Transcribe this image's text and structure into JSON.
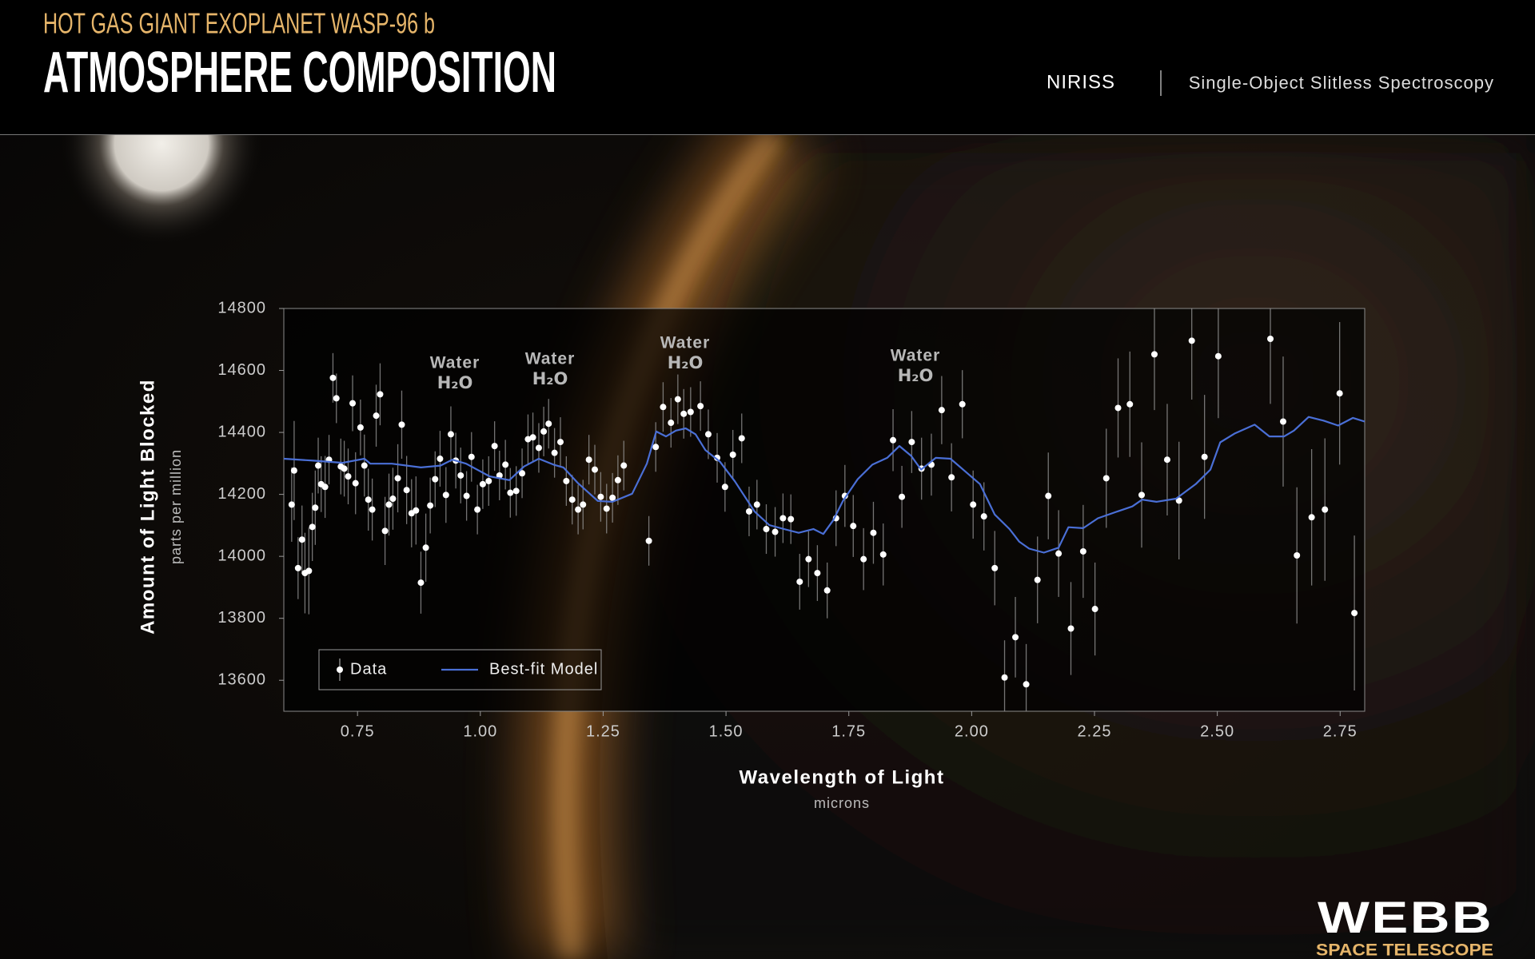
{
  "header": {
    "subtitle": "HOT GAS GIANT EXOPLANET WASP-96 b",
    "title": "ATMOSPHERE COMPOSITION",
    "instrument": "NIRISS",
    "mode": "Single-Object Slitless Spectroscopy"
  },
  "logo": {
    "name": "WEBB",
    "tagline": "SPACE TELESCOPE"
  },
  "chart_data": {
    "type": "scatter",
    "ylabel": "Amount of Light Blocked",
    "ylabel_units": "parts per million",
    "xlabel": "Wavelength of Light",
    "xlabel_units": "microns",
    "xlim": [
      0.6,
      2.8
    ],
    "ylim": [
      13500,
      14800
    ],
    "xticks": [
      0.75,
      {
        "value": 1,
        "label": "1.00"
      },
      1.25,
      {
        "value": 1.5,
        "label": "1.50"
      },
      1.75,
      {
        "value": 2,
        "label": "2.00"
      },
      2.25,
      {
        "value": 2.5,
        "label": "2.50"
      },
      2.75
    ],
    "yticks": [
      13600,
      13800,
      14000,
      14200,
      14400,
      14600,
      14800
    ],
    "legend": "lower left",
    "annotations": [
      {
        "text": "Water",
        "formula": "H₂O"
      },
      {
        "text": "Water",
        "formula": "H₂O"
      },
      {
        "text": "Water",
        "formula": "H₂O"
      },
      {
        "text": "Water",
        "formula": "H₂O"
      }
    ],
    "series": [
      {
        "name": "Data",
        "type": "scatter",
        "color": "#ffffff",
        "error_color": "#9a9a9a",
        "x": [
          0.616,
          0.621,
          0.629,
          0.637,
          0.643,
          0.651,
          0.658,
          0.664,
          0.67,
          0.676,
          0.684,
          0.692,
          0.7,
          0.707,
          0.716,
          0.723,
          0.731,
          0.74,
          0.746,
          0.756,
          0.764,
          0.772,
          0.78,
          0.788,
          0.796,
          0.806,
          0.814,
          0.822,
          0.832,
          0.84,
          0.85,
          0.86,
          0.869,
          0.879,
          0.889,
          0.898,
          0.908,
          0.918,
          0.93,
          0.94,
          0.95,
          0.96,
          0.972,
          0.982,
          0.994,
          1.005,
          1.017,
          1.029,
          1.039,
          1.051,
          1.061,
          1.073,
          1.085,
          1.097,
          1.107,
          1.119,
          1.129,
          1.139,
          1.151,
          1.163,
          1.175,
          1.187,
          1.199,
          1.209,
          1.221,
          1.233,
          1.245,
          1.257,
          1.269,
          1.28,
          1.292,
          1.343,
          1.357,
          1.372,
          1.388,
          1.402,
          1.414,
          1.428,
          1.448,
          1.464,
          1.482,
          1.498,
          1.514,
          1.532,
          1.547,
          1.563,
          1.582,
          1.6,
          1.616,
          1.632,
          1.65,
          1.668,
          1.686,
          1.706,
          1.724,
          1.742,
          1.759,
          1.78,
          1.8,
          1.82,
          1.84,
          1.858,
          1.878,
          1.898,
          1.918,
          1.939,
          1.959,
          1.981,
          2.003,
          2.025,
          2.047,
          2.067,
          2.089,
          2.111,
          2.134,
          2.156,
          2.177,
          2.202,
          2.227,
          2.251,
          2.274,
          2.298,
          2.322,
          2.346,
          2.372,
          2.398,
          2.422,
          2.448,
          2.474,
          2.502,
          2.608,
          2.634,
          2.662,
          2.692,
          2.719,
          2.749,
          2.779
        ],
        "values": [
          14167,
          14277,
          13962,
          14054,
          13946,
          13953,
          14095,
          14157,
          14293,
          14233,
          14224,
          14312,
          14576,
          14510,
          14290,
          14283,
          14258,
          14494,
          14236,
          14416,
          14293,
          14183,
          14151,
          14454,
          14523,
          14082,
          14167,
          14186,
          14252,
          14425,
          14214,
          14139,
          14148,
          13915,
          14028,
          14164,
          14249,
          14315,
          14198,
          14394,
          14309,
          14261,
          14195,
          14321,
          14151,
          14233,
          14243,
          14356,
          14261,
          14296,
          14205,
          14211,
          14268,
          14378,
          14384,
          14350,
          14403,
          14428,
          14334,
          14369,
          14243,
          14183,
          14151,
          14167,
          14312,
          14280,
          14192,
          14154,
          14189,
          14246,
          14293,
          14050,
          14353,
          14482,
          14431,
          14507,
          14460,
          14466,
          14485,
          14394,
          14318,
          14224,
          14328,
          14381,
          14145,
          14167,
          14088,
          14079,
          14123,
          14120,
          13918,
          13991,
          13946,
          13890,
          14123,
          14195,
          14098,
          13991,
          14076,
          14006,
          14375,
          14192,
          14369,
          14283,
          14296,
          14472,
          14255,
          14491,
          14167,
          14129,
          13962,
          13609,
          13739,
          13587,
          13924,
          14195,
          14009,
          13767,
          14016,
          13830,
          14252,
          14479,
          14491,
          14198,
          14652,
          14312,
          14180,
          14696,
          14321,
          14646,
          14702,
          14435,
          14003,
          14126,
          14151,
          14526,
          13817
        ],
        "errors": [
          120,
          160,
          100,
          110,
          130,
          140,
          110,
          120,
          90,
          90,
          100,
          80,
          80,
          80,
          90,
          90,
          90,
          90,
          100,
          90,
          100,
          100,
          100,
          100,
          100,
          110,
          100,
          100,
          110,
          110,
          110,
          110,
          110,
          100,
          110,
          90,
          90,
          90,
          90,
          90,
          90,
          90,
          80,
          80,
          80,
          80,
          80,
          80,
          80,
          80,
          80,
          80,
          80,
          80,
          80,
          80,
          80,
          80,
          80,
          80,
          80,
          80,
          80,
          80,
          80,
          80,
          80,
          80,
          80,
          80,
          80,
          80,
          80,
          80,
          80,
          80,
          80,
          80,
          80,
          80,
          80,
          80,
          80,
          80,
          80,
          80,
          80,
          80,
          80,
          80,
          90,
          90,
          90,
          90,
          90,
          100,
          100,
          100,
          100,
          100,
          100,
          100,
          100,
          100,
          100,
          110,
          110,
          110,
          110,
          110,
          120,
          120,
          130,
          130,
          140,
          140,
          140,
          150,
          150,
          150,
          160,
          160,
          170,
          170,
          180,
          180,
          190,
          190,
          200,
          200,
          210,
          210,
          220,
          220,
          230,
          230,
          250
        ]
      },
      {
        "name": "Best-fit Model",
        "type": "line",
        "color": "#4a6fd6",
        "x": [
          0.6,
          0.66,
          0.72,
          0.764,
          0.776,
          0.82,
          0.879,
          0.919,
          0.943,
          0.971,
          1.019,
          1.059,
          1.089,
          1.119,
          1.149,
          1.169,
          1.199,
          1.239,
          1.269,
          1.309,
          1.339,
          1.358,
          1.378,
          1.398,
          1.418,
          1.438,
          1.458,
          1.488,
          1.518,
          1.558,
          1.588,
          1.618,
          1.648,
          1.678,
          1.698,
          1.718,
          1.738,
          1.768,
          1.798,
          1.828,
          1.853,
          1.877,
          1.897,
          1.927,
          1.957,
          1.987,
          2.017,
          2.047,
          2.077,
          2.097,
          2.117,
          2.147,
          2.177,
          2.197,
          2.227,
          2.257,
          2.297,
          2.327,
          2.347,
          2.376,
          2.416,
          2.456,
          2.486,
          2.506,
          2.536,
          2.576,
          2.606,
          2.636,
          2.656,
          2.686,
          2.716,
          2.746,
          2.776,
          2.8
        ],
        "values": [
          14315,
          14309,
          14302,
          14315,
          14299,
          14299,
          14287,
          14293,
          14312,
          14299,
          14258,
          14246,
          14290,
          14315,
          14296,
          14287,
          14236,
          14179,
          14176,
          14202,
          14299,
          14403,
          14387,
          14406,
          14413,
          14394,
          14343,
          14305,
          14242,
          14145,
          14101,
          14088,
          14076,
          14088,
          14072,
          14116,
          14179,
          14249,
          14296,
          14318,
          14356,
          14324,
          14280,
          14318,
          14315,
          14274,
          14233,
          14135,
          14088,
          14047,
          14025,
          14012,
          14028,
          14094,
          14091,
          14123,
          14145,
          14161,
          14183,
          14176,
          14186,
          14233,
          14280,
          14368,
          14397,
          14425,
          14387,
          14387,
          14406,
          14450,
          14438,
          14422,
          14447,
          14435
        ]
      }
    ]
  }
}
